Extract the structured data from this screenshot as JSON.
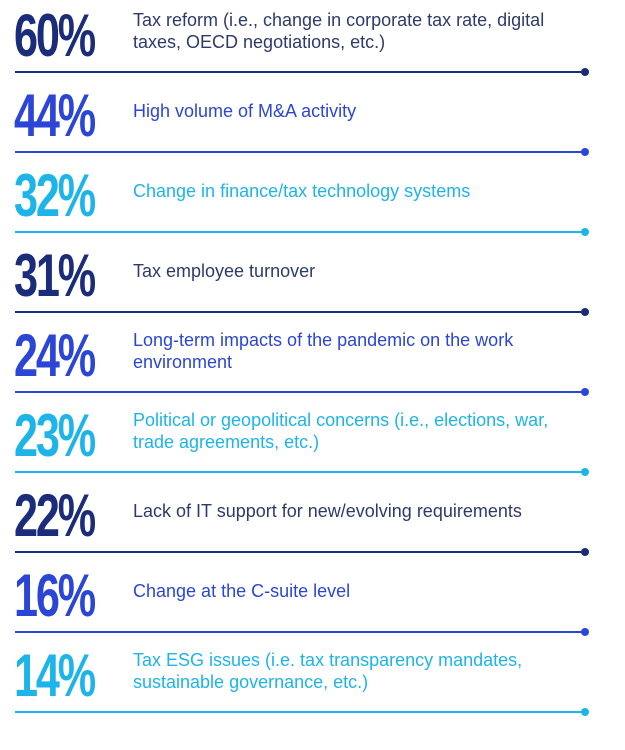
{
  "colors": {
    "dark": "#1b2d7a",
    "blue": "#2b46d6",
    "cyan": "#1db4ea",
    "dark_text": "#2e3a6b"
  },
  "chart_data": {
    "type": "table",
    "items": [
      {
        "value": "60%",
        "label": "Tax reform (i.e., change in corporate tax rate, digital taxes, OECD negotiations, etc.)",
        "color": "#1b2d7a"
      },
      {
        "value": "44%",
        "label": "High volume of M&A activity",
        "color": "#2b46d6"
      },
      {
        "value": "32%",
        "label": "Change in finance/tax technology systems",
        "color": "#1db4ea"
      },
      {
        "value": "31%",
        "label": "Tax employee turnover",
        "color": "#1b2d7a"
      },
      {
        "value": "24%",
        "label": "Long-term impacts of the pandemic on the work environment",
        "color": "#2b46d6"
      },
      {
        "value": "23%",
        "label": "Political or geopolitical concerns (i.e., elections, war, trade agreements, etc.)",
        "color": "#1db4ea"
      },
      {
        "value": "22%",
        "label": "Lack of IT support for new/evolving requirements",
        "color": "#1b2d7a"
      },
      {
        "value": "16%",
        "label": "Change at the C-suite level",
        "color": "#2b46d6"
      },
      {
        "value": "14%",
        "label": "Tax ESG issues (i.e. tax transparency mandates, sustainable governance, etc.)",
        "color": "#1db4ea"
      }
    ]
  }
}
